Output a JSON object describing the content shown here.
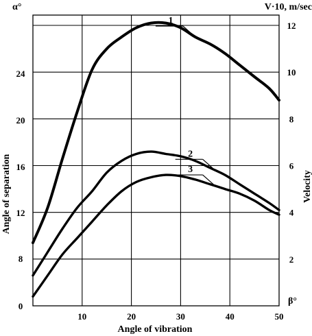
{
  "chart_data": {
    "type": "line",
    "xlabel": "Angle  of  vibration",
    "x_symbol": "β°",
    "ylabel_left": "Angle  of  separation",
    "left_symbol": "α°",
    "ylabel_right": "Velocity",
    "right_title": "V·10, m/sec",
    "xlim": [
      0,
      50
    ],
    "ylim_left": [
      0,
      28
    ],
    "ylim_right": [
      0,
      12
    ],
    "x_ticks": [
      10,
      20,
      30,
      40,
      50
    ],
    "y_left_ticks": [
      0,
      8,
      12,
      16,
      20,
      24
    ],
    "y_right_ticks": [
      2,
      4,
      6,
      8,
      10,
      12
    ],
    "grid": true,
    "series": [
      {
        "name": "1",
        "x": [
          0,
          3,
          6,
          9,
          12,
          15,
          18,
          21,
          24,
          27,
          30,
          33,
          36,
          39,
          42,
          45,
          48,
          50
        ],
        "y_right": [
          2.7,
          4.2,
          6.3,
          8.3,
          10.1,
          11.0,
          11.5,
          11.9,
          12.1,
          12.1,
          11.9,
          11.5,
          11.2,
          10.8,
          10.3,
          9.8,
          9.3,
          8.8
        ]
      },
      {
        "name": "2",
        "x": [
          0,
          3,
          6,
          9,
          12,
          15,
          18,
          21,
          24,
          27,
          30,
          33,
          36,
          39,
          42,
          45,
          48,
          50
        ],
        "y_right": [
          1.3,
          2.3,
          3.3,
          4.2,
          4.9,
          5.7,
          6.2,
          6.5,
          6.6,
          6.5,
          6.4,
          6.2,
          5.9,
          5.6,
          5.2,
          4.8,
          4.4,
          4.1
        ]
      },
      {
        "name": "3",
        "x": [
          0,
          3,
          6,
          9,
          12,
          15,
          18,
          21,
          24,
          27,
          30,
          33,
          36,
          39,
          42,
          45,
          48,
          50
        ],
        "y_right": [
          0.4,
          1.3,
          2.2,
          2.9,
          3.6,
          4.3,
          4.9,
          5.3,
          5.5,
          5.6,
          5.55,
          5.4,
          5.2,
          5.0,
          4.8,
          4.5,
          4.1,
          3.9
        ]
      }
    ],
    "callout_x": [
      33,
      37,
      37
    ]
  }
}
